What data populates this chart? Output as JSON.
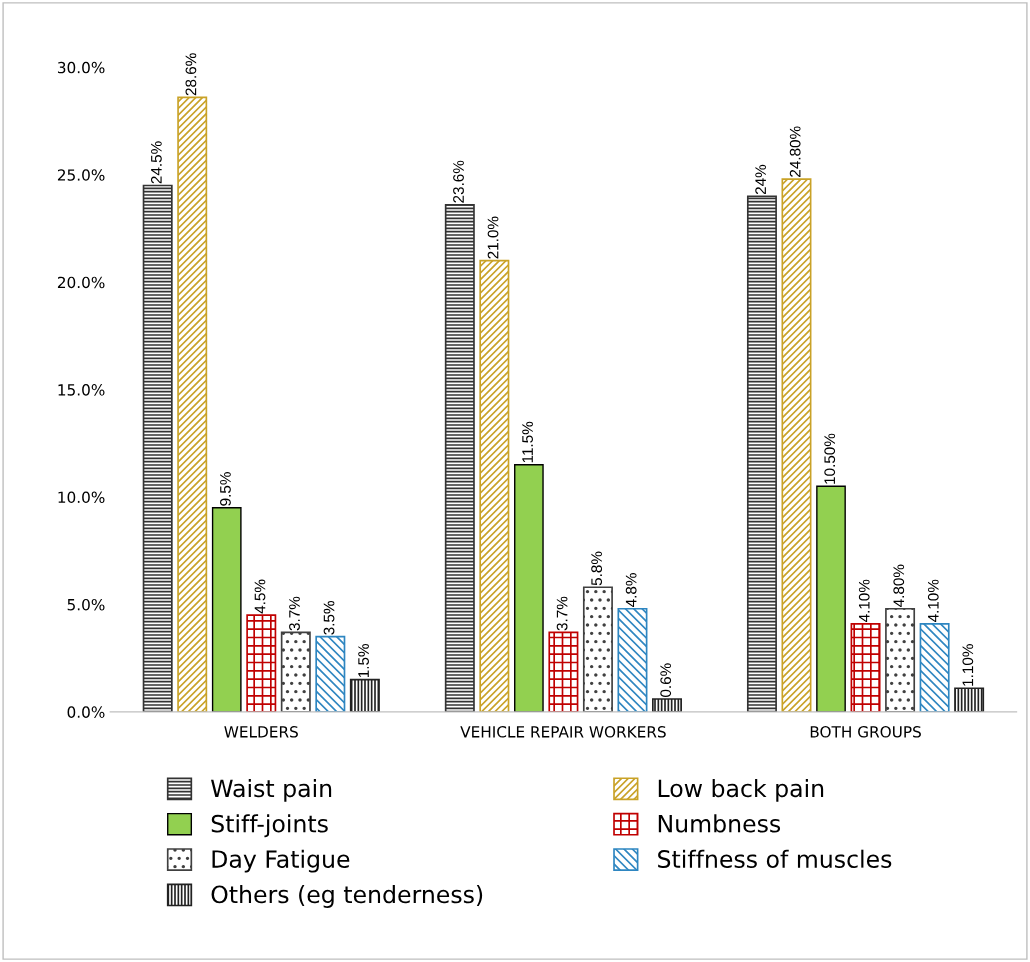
{
  "chart_data": {
    "type": "bar",
    "categories": [
      "WELDERS",
      "VEHICLE REPAIR WORKERS",
      "BOTH GROUPS"
    ],
    "series": [
      {
        "name": "Waist pain",
        "color": "#333333",
        "values": [
          24.5,
          23.6,
          24
        ],
        "value_labels": [
          "24.5%",
          "23.6%",
          "24%"
        ]
      },
      {
        "name": "Low back pain",
        "color": "#c9a227",
        "values": [
          28.6,
          21.0,
          24.8
        ],
        "value_labels": [
          "28.6%",
          "21.0%",
          "24.80%"
        ]
      },
      {
        "name": "Stiff-joints",
        "color": "#92d050",
        "values": [
          9.5,
          11.5,
          10.5
        ],
        "value_labels": [
          "9.5%",
          "11.5%",
          "10.50%"
        ]
      },
      {
        "name": "Numbness",
        "color": "#c00000",
        "values": [
          4.5,
          3.7,
          4.1
        ],
        "value_labels": [
          "4.5%",
          "3.7%",
          "4.10%"
        ]
      },
      {
        "name": "Day Fatigue",
        "color": "#404040",
        "values": [
          3.7,
          5.8,
          4.8
        ],
        "value_labels": [
          "3.7%",
          "5.8%",
          "4.80%"
        ]
      },
      {
        "name": "Stiffness of muscles",
        "color": "#2e86c1",
        "values": [
          3.5,
          4.8,
          4.1
        ],
        "value_labels": [
          "3.5%",
          "4.8%",
          "4.10%"
        ]
      },
      {
        "name": "Others (eg tenderness)",
        "color": "#222222",
        "values": [
          1.5,
          0.6,
          1.1
        ],
        "value_labels": [
          "1.5%",
          "0.6%",
          "1.10%"
        ]
      }
    ],
    "ylim": [
      0,
      30
    ],
    "yticks": [
      {
        "value": 0,
        "label": "0.0%"
      },
      {
        "value": 5,
        "label": "5.0%"
      },
      {
        "value": 10,
        "label": "10.0%"
      },
      {
        "value": 15,
        "label": "15.0%"
      },
      {
        "value": 20,
        "label": "20.0%"
      },
      {
        "value": 25,
        "label": "25.0%"
      },
      {
        "value": 30,
        "label": "30.0%"
      }
    ],
    "grid": false,
    "legend": "bottom"
  }
}
